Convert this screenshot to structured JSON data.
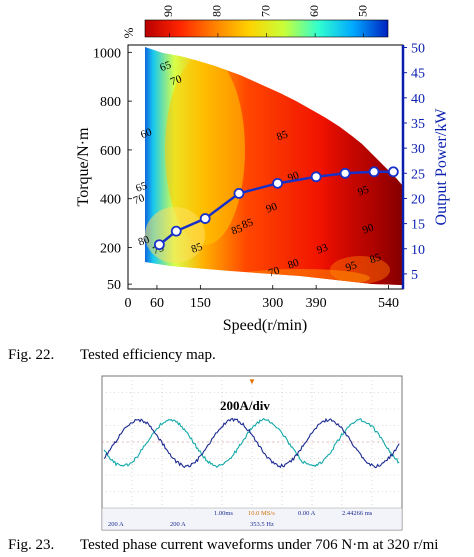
{
  "chart_data": [
    {
      "type": "heatmap",
      "colorbar": {
        "unit": "%",
        "ticks": [
          90,
          80,
          70,
          60,
          50
        ],
        "range": [
          95,
          45
        ],
        "colors": [
          "#b80000",
          "#ff2400",
          "#ff8000",
          "#ffd200",
          "#c8ff38",
          "#30ffd0",
          "#00a8ff",
          "#0020c0"
        ]
      },
      "xlabel": "Speed(r/min)",
      "xticks": [
        0,
        60,
        150,
        300,
        390,
        540
      ],
      "xlim": [
        0,
        570
      ],
      "ylabel": "Torque/N·m",
      "yticks": [
        50,
        200,
        400,
        600,
        800,
        1000
      ],
      "ylim": [
        30,
        1030
      ],
      "y2label": "Output Power/kW",
      "y2ticks": [
        5,
        10,
        15,
        20,
        25,
        30,
        35,
        40,
        45,
        50
      ],
      "y2lim": [
        2,
        50.5
      ],
      "contour_labels": [
        {
          "text": "65",
          "x": 80,
          "y": 930
        },
        {
          "text": "70",
          "x": 102,
          "y": 872
        },
        {
          "text": "60",
          "x": 40,
          "y": 655
        },
        {
          "text": "65",
          "x": 30,
          "y": 435
        },
        {
          "text": "70",
          "x": 25,
          "y": 385
        },
        {
          "text": "75",
          "x": 65,
          "y": 180
        },
        {
          "text": "80",
          "x": 35,
          "y": 215
        },
        {
          "text": "85",
          "x": 145,
          "y": 185
        },
        {
          "text": "85",
          "x": 228,
          "y": 260
        },
        {
          "text": "85",
          "x": 250,
          "y": 285
        },
        {
          "text": "85",
          "x": 322,
          "y": 646
        },
        {
          "text": "90",
          "x": 345,
          "y": 478
        },
        {
          "text": "90",
          "x": 300,
          "y": 350
        },
        {
          "text": "93",
          "x": 405,
          "y": 182
        },
        {
          "text": "95",
          "x": 490,
          "y": 420
        },
        {
          "text": "90",
          "x": 500,
          "y": 264
        },
        {
          "text": "95",
          "x": 465,
          "y": 110
        },
        {
          "text": "85",
          "x": 515,
          "y": 142
        },
        {
          "text": "80",
          "x": 345,
          "y": 120
        },
        {
          "text": "70",
          "x": 305,
          "y": 88
        }
      ],
      "series": [
        {
          "x": [
            65,
            100,
            160,
            230,
            310,
            390,
            450,
            510,
            550
          ],
          "y2": [
            10.8,
            13.5,
            16.0,
            21.0,
            23.0,
            24.3,
            25.0,
            25.3,
            25.3
          ]
        }
      ]
    },
    {
      "type": "line",
      "annotation": "200A/div",
      "scope_readouts": [
        "1.00ms",
        "10.0 MS/s",
        "0.00 A",
        "2.44266 ms",
        "200 A",
        "200 A",
        "353.5 Hz"
      ]
    }
  ],
  "captions": [
    {
      "num": "Fig. 22.",
      "text": "Tested efficiency map."
    },
    {
      "num": "Fig. 23.",
      "text": "Tested phase current waveforms under 706 N·m at 320 r/mi"
    }
  ]
}
